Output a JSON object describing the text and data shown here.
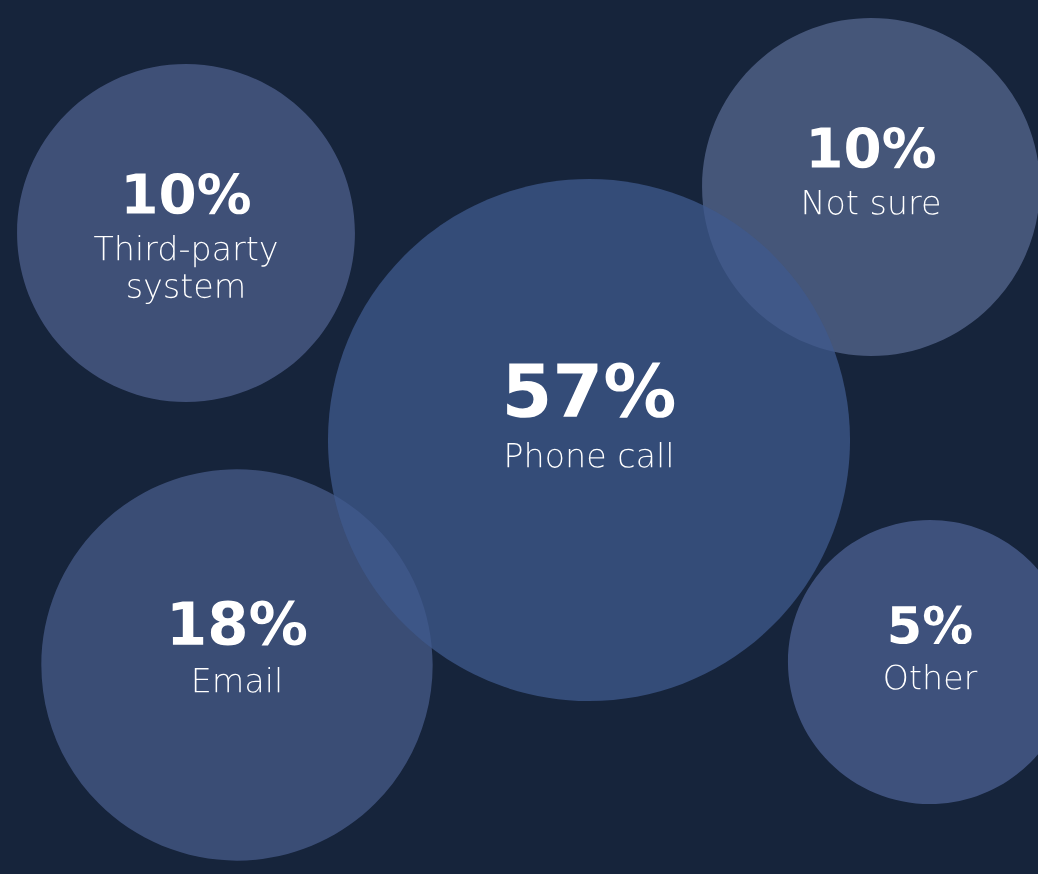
{
  "chart_data": {
    "type": "other",
    "categories": [
      "Phone call",
      "Email",
      "Third-party system",
      "Not sure",
      "Other"
    ],
    "values": [
      57,
      18,
      10,
      10,
      5
    ],
    "value_labels": [
      "57%",
      "18%",
      "10%",
      "10%",
      "5%"
    ],
    "colors": [
      "#3f5a8e",
      "#475b8a",
      "#4d5f8c",
      "#55678f",
      "#4c6093"
    ]
  }
}
